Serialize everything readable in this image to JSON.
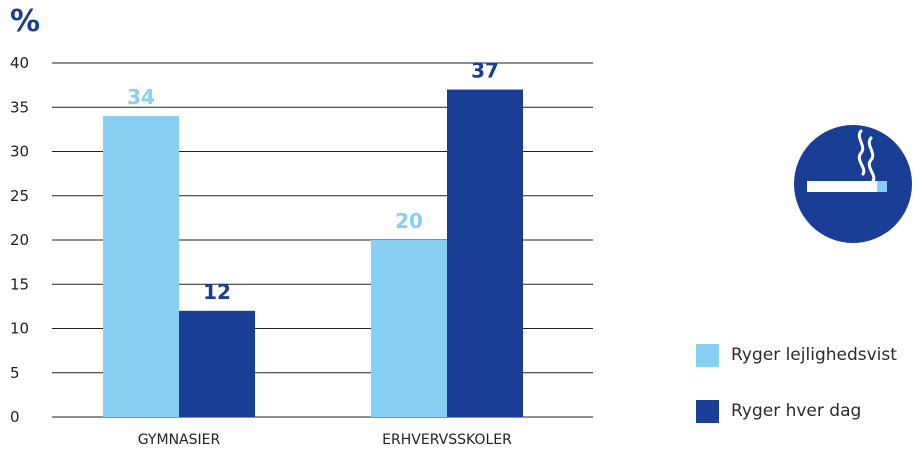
{
  "chart_data": {
    "type": "bar",
    "unit_label": "%",
    "categories": [
      "GYMNASIER",
      "ERHVERVSSKOLER"
    ],
    "series": [
      {
        "name": "Ryger lejlighedsvist",
        "values": [
          34,
          20
        ],
        "color": "#87d0f3"
      },
      {
        "name": "Ryger hver dag",
        "values": [
          12,
          37
        ],
        "color": "#1a3d96"
      }
    ],
    "ylim": [
      0,
      40
    ],
    "yticks": [
      0,
      5,
      10,
      15,
      20,
      25,
      30,
      35,
      40
    ],
    "grid": true,
    "legend_position": "right"
  },
  "icon": {
    "name": "smoking-cigarette-icon",
    "circle_color": "#1a3d96"
  }
}
